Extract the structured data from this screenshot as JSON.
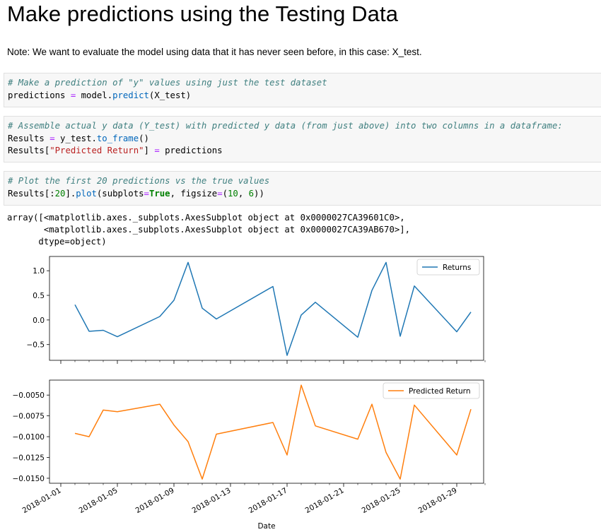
{
  "notebook": {
    "heading": "Make predictions using the Testing Data",
    "note": "Note: We want to evaluate the model using data that it has never seen before, in this case: X_test.",
    "cells": [
      {
        "comment": "# Make a prediction of \"y\" values using just the test dataset",
        "line1": {
          "var": "predictions",
          "op": "=",
          "obj": "model",
          "fn": "predict",
          "arg": "(X_test)"
        }
      },
      {
        "comment": "# Assemble actual y data (Y_test) with predicted y data (from just above) into two columns in a dataframe:",
        "line1": {
          "var": "Results",
          "op": "=",
          "obj": "y_test",
          "fn": "to_frame",
          "arg": "()"
        },
        "line2": {
          "var": "Results[",
          "key": "\"Predicted Return\"",
          "close": "]",
          "op": "=",
          "value": "predictions"
        }
      },
      {
        "comment": "# Plot the first 20 predictions vs the true values",
        "line1": {
          "var": "Results[:",
          "num1": "20",
          "mid": "].",
          "fn": "plot",
          "open": "(subplots",
          "op": "=",
          "kw": "True",
          "sep": ", figsize",
          "op2": "=",
          "tuple_open": "(",
          "n1": "10",
          "comma": ", ",
          "n2": "6",
          "close": "))"
        }
      }
    ],
    "output": "array([<matplotlib.axes._subplots.AxesSubplot object at 0x0000027CA39601C0>,\n       <matplotlib.axes._subplots.AxesSubplot object at 0x0000027CA39AB670>],\n      dtype=object)"
  },
  "chart_data": {
    "type": "line",
    "subplots": true,
    "xlabel": "Date",
    "x_ticks": [
      "2018-01-01",
      "2018-01-05",
      "2018-01-09",
      "2018-01-13",
      "2018-01-17",
      "2018-01-21",
      "2018-01-25",
      "2018-01-29"
    ],
    "x": [
      "2018-01-02",
      "2018-01-03",
      "2018-01-04",
      "2018-01-05",
      "2018-01-08",
      "2018-01-09",
      "2018-01-10",
      "2018-01-11",
      "2018-01-12",
      "2018-01-16",
      "2018-01-17",
      "2018-01-18",
      "2018-01-19",
      "2018-01-22",
      "2018-01-23",
      "2018-01-24",
      "2018-01-25",
      "2018-01-26",
      "2018-01-29",
      "2018-01-30"
    ],
    "series": [
      {
        "name": "Returns",
        "color": "#1f77b4",
        "values": [
          0.31,
          -0.23,
          -0.21,
          -0.34,
          0.07,
          0.4,
          1.17,
          0.24,
          0.02,
          0.68,
          -0.72,
          0.1,
          0.36,
          -0.35,
          0.6,
          1.17,
          -0.33,
          0.69,
          -0.24,
          0.16
        ],
        "yticks": [
          -0.5,
          0.0,
          0.5,
          1.0
        ],
        "ytick_labels": [
          "−0.5",
          "0.0",
          "0.5",
          "1.0"
        ],
        "ylim": [
          -0.82,
          1.29
        ],
        "legend": "top-right"
      },
      {
        "name": "Predicted Return",
        "color": "#ff7f0e",
        "values": [
          -0.0096,
          -0.01,
          -0.0068,
          -0.007,
          -0.0061,
          -0.0086,
          -0.0106,
          -0.0151,
          -0.0097,
          -0.0083,
          -0.0122,
          -0.0038,
          -0.0087,
          -0.0103,
          -0.0061,
          -0.0119,
          -0.0151,
          -0.0062,
          -0.0122,
          -0.0067
        ],
        "yticks": [
          -0.015,
          -0.0125,
          -0.01,
          -0.0075,
          -0.005
        ],
        "ytick_labels": [
          "−0.0150",
          "−0.0125",
          "−0.0100",
          "−0.0075",
          "−0.0050"
        ],
        "ylim": [
          -0.0156,
          -0.0032
        ],
        "legend": "top-right"
      }
    ]
  }
}
